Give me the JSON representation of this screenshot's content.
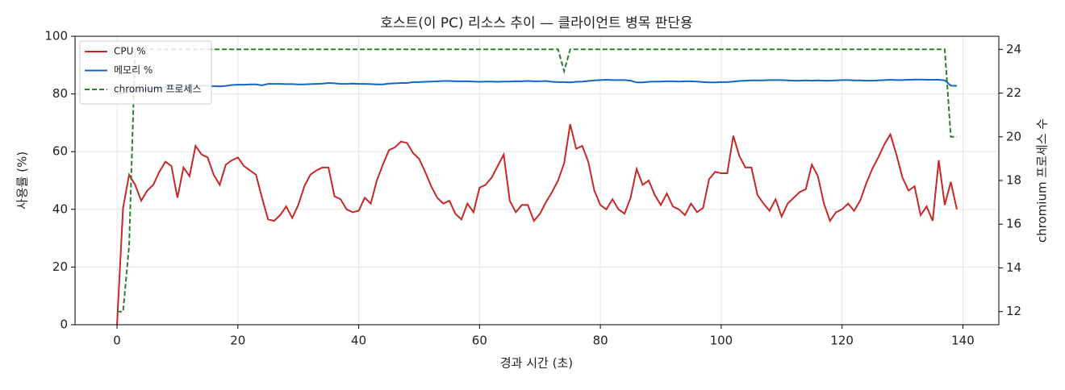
{
  "chart_data": {
    "type": "line",
    "title": "호스트(이 PC) 리소스 추이 — 클라이언트 병목 판단용",
    "x_label": "경과 시간 (초)",
    "y_label": "사용률 (%)",
    "y2_label": "chromium 프로세스 수",
    "x": [
      0,
      1,
      2,
      3,
      4,
      5,
      6,
      7,
      8,
      9,
      10,
      11,
      12,
      13,
      14,
      15,
      16,
      17,
      18,
      19,
      20,
      21,
      22,
      23,
      24,
      25,
      26,
      27,
      28,
      29,
      30,
      31,
      32,
      33,
      34,
      35,
      36,
      37,
      38,
      39,
      40,
      41,
      42,
      43,
      44,
      45,
      46,
      47,
      48,
      49,
      50,
      51,
      52,
      53,
      54,
      55,
      56,
      57,
      58,
      59,
      60,
      61,
      62,
      63,
      64,
      65,
      66,
      67,
      68,
      69,
      70,
      71,
      72,
      73,
      74,
      75,
      76,
      77,
      78,
      79,
      80,
      81,
      82,
      83,
      84,
      85,
      86,
      87,
      88,
      89,
      90,
      91,
      92,
      93,
      94,
      95,
      96,
      97,
      98,
      99,
      100,
      101,
      102,
      103,
      104,
      105,
      106,
      107,
      108,
      109,
      110,
      111,
      112,
      113,
      114,
      115,
      116,
      117,
      118,
      119,
      120,
      121,
      122,
      123,
      124,
      125,
      126,
      127,
      128,
      129,
      130,
      131,
      132,
      133,
      134,
      135,
      136,
      137,
      138,
      139
    ],
    "series": [
      {
        "name": "CPU %",
        "color": "#c62828",
        "linestyle": "solid",
        "axis": "y",
        "values": [
          0,
          40.5,
          52,
          48.5,
          43,
          46.5,
          48.5,
          53,
          56.5,
          55,
          44,
          54.5,
          51.5,
          62,
          59,
          58,
          52,
          48.5,
          55.5,
          57,
          58,
          55,
          53.5,
          52,
          44,
          36.5,
          36,
          38,
          41,
          37,
          41.5,
          48,
          52,
          53.5,
          54.5,
          54.5,
          44.5,
          43.5,
          40,
          39,
          39.5,
          44,
          42,
          50,
          55.5,
          60.5,
          61.5,
          63.5,
          63,
          59.5,
          57.5,
          53,
          48,
          44,
          42,
          43,
          38.5,
          36.5,
          42,
          39,
          47.5,
          48.5,
          51,
          55,
          59,
          43,
          39,
          41.5,
          41.5,
          36,
          38.5,
          42.5,
          46,
          50,
          56,
          69.5,
          61,
          62,
          56.5,
          46.5,
          41.5,
          40,
          43.5,
          40,
          38.5,
          44,
          54,
          48.5,
          50,
          45,
          41.5,
          45.5,
          41,
          40,
          38,
          42,
          39,
          40.5,
          50.5,
          53,
          52.5,
          52.5,
          65.5,
          58.5,
          54.5,
          54.5,
          45,
          42,
          39.5,
          43.5,
          37.5,
          42,
          44,
          46,
          47,
          55.5,
          51.5,
          42,
          36,
          39,
          40,
          42,
          39.5,
          43,
          49,
          54,
          58,
          62.5,
          66,
          59,
          51,
          46.5,
          48,
          38,
          41,
          36,
          57,
          41.5,
          49.5,
          40
        ]
      },
      {
        "name": "메모리 %",
        "color": "#1565c0",
        "linestyle": "solid",
        "axis": "y",
        "values": [
          80,
          80.3,
          80.6,
          81,
          81.3,
          81.6,
          81.9,
          82.1,
          82.3,
          82.5,
          82.6,
          82.7,
          82.8,
          82.8,
          82.9,
          82.8,
          82.7,
          82.6,
          82.8,
          83.1,
          83.2,
          83.2,
          83.3,
          83.3,
          83,
          83.5,
          83.5,
          83.5,
          83.4,
          83.4,
          83.3,
          83.3,
          83.4,
          83.5,
          83.6,
          83.8,
          83.7,
          83.5,
          83.5,
          83.6,
          83.5,
          83.5,
          83.4,
          83.3,
          83.3,
          83.6,
          83.7,
          83.8,
          83.8,
          84.1,
          84.1,
          84.2,
          84.3,
          84.4,
          84.5,
          84.5,
          84.4,
          84.4,
          84.4,
          84.3,
          84.2,
          84.3,
          84.3,
          84.2,
          84.3,
          84.3,
          84.4,
          84.4,
          84.5,
          84.4,
          84.4,
          84.5,
          84.2,
          84.1,
          84.1,
          84,
          84.2,
          84.3,
          84.5,
          84.7,
          84.8,
          84.9,
          84.8,
          84.8,
          84.8,
          84.6,
          84,
          84,
          84.2,
          84.3,
          84.3,
          84.4,
          84.4,
          84.3,
          84.4,
          84.4,
          84.3,
          84.1,
          84,
          84,
          84.1,
          84.1,
          84.3,
          84.5,
          84.6,
          84.7,
          84.7,
          84.7,
          84.8,
          84.8,
          84.8,
          84.7,
          84.6,
          84.6,
          84.7,
          84.6,
          84.7,
          84.6,
          84.6,
          84.7,
          84.8,
          84.8,
          84.7,
          84.7,
          84.6,
          84.6,
          84.7,
          84.8,
          84.9,
          84.8,
          84.8,
          84.9,
          85,
          85,
          84.9,
          84.9,
          84.9,
          84.7,
          82.9,
          82.8
        ]
      },
      {
        "name": "chromium 프로세스",
        "color": "#2e7d32",
        "linestyle": "dashed",
        "axis": "y2",
        "values": [
          12,
          12,
          15,
          24,
          24,
          24,
          24,
          24,
          24,
          24,
          24,
          24,
          24,
          24,
          24,
          24,
          24,
          24,
          24,
          24,
          24,
          24,
          24,
          24,
          24,
          24,
          24,
          24,
          24,
          24,
          24,
          24,
          24,
          24,
          24,
          24,
          24,
          24,
          24,
          24,
          24,
          24,
          24,
          24,
          24,
          24,
          24,
          24,
          24,
          24,
          24,
          24,
          24,
          24,
          24,
          24,
          24,
          24,
          24,
          24,
          24,
          24,
          24,
          24,
          24,
          24,
          24,
          24,
          24,
          24,
          24,
          24,
          24,
          24,
          23,
          24,
          24,
          24,
          24,
          24,
          24,
          24,
          24,
          24,
          24,
          24,
          24,
          24,
          24,
          24,
          24,
          24,
          24,
          24,
          24,
          24,
          24,
          24,
          24,
          24,
          24,
          24,
          24,
          24,
          24,
          24,
          24,
          24,
          24,
          24,
          24,
          24,
          24,
          24,
          24,
          24,
          24,
          24,
          24,
          24,
          24,
          24,
          24,
          24,
          24,
          24,
          24,
          24,
          24,
          24,
          24,
          24,
          24,
          24,
          24,
          24,
          24,
          24,
          20,
          20
        ]
      }
    ],
    "xlim": [
      -6.95,
      145.95
    ],
    "xticks": [
      0,
      20,
      40,
      60,
      80,
      100,
      120,
      140
    ],
    "ylim": [
      0,
      100
    ],
    "yticks": [
      0,
      20,
      40,
      60,
      80,
      100
    ],
    "y2lim": [
      11.4,
      24.6
    ],
    "y2ticks": [
      12,
      14,
      16,
      18,
      20,
      22,
      24
    ],
    "grid": true,
    "legend": "upper left"
  }
}
